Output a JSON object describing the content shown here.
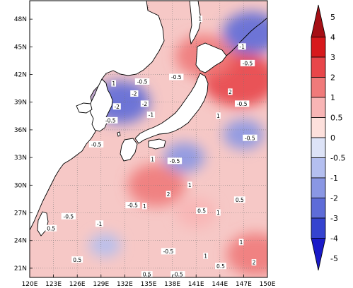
{
  "map": {
    "projection": "lat-lon",
    "extent": {
      "lon_range": [
        120,
        150
      ],
      "lat_range": [
        20,
        50
      ]
    },
    "x_ticks": [
      {
        "value": 120,
        "label": "120E"
      },
      {
        "value": 123,
        "label": "123E"
      },
      {
        "value": 126,
        "label": "126E"
      },
      {
        "value": 129,
        "label": "129E"
      },
      {
        "value": 132,
        "label": "132E"
      },
      {
        "value": 135,
        "label": "135E"
      },
      {
        "value": 138,
        "label": "138E"
      },
      {
        "value": 141,
        "label": "141E"
      },
      {
        "value": 144,
        "label": "144E"
      },
      {
        "value": 147,
        "label": "147E"
      },
      {
        "value": 150,
        "label": "150E"
      }
    ],
    "y_ticks": [
      {
        "value": 21,
        "label": "21N"
      },
      {
        "value": 24,
        "label": "24N"
      },
      {
        "value": 27,
        "label": "27N"
      },
      {
        "value": 30,
        "label": "30N"
      },
      {
        "value": 33,
        "label": "33N"
      },
      {
        "value": 36,
        "label": "36N"
      },
      {
        "value": 39,
        "label": "39N"
      },
      {
        "value": 42,
        "label": "42N"
      },
      {
        "value": 45,
        "label": "45N"
      },
      {
        "value": 48,
        "label": "48N"
      }
    ],
    "land_color": "#ffffff",
    "coastline_color": "#000000",
    "gridlines": "dotted",
    "field": {
      "type": "filled-contour",
      "anomaly_centers": [
        {
          "lon": 146.5,
          "lat": 41.5,
          "value": 3
        },
        {
          "lon": 148.5,
          "lat": 22.5,
          "value": 2
        },
        {
          "lon": 136.0,
          "lat": 30.0,
          "value": 2
        },
        {
          "lon": 142.0,
          "lat": 44.0,
          "value": 2
        },
        {
          "lon": 131.5,
          "lat": 39.0,
          "value": -2
        },
        {
          "lon": 148.0,
          "lat": 46.5,
          "value": -2
        },
        {
          "lon": 139.5,
          "lat": 33.0,
          "value": -1
        },
        {
          "lon": 147.0,
          "lat": 35.5,
          "value": -1
        },
        {
          "lon": 129.5,
          "lat": 23.5,
          "value": -0.5
        },
        {
          "lon": 141.0,
          "lat": 27.0,
          "value": 1
        }
      ],
      "contour_labels": [
        {
          "lon": 146.8,
          "lat": 45.0,
          "text": "-1"
        },
        {
          "lon": 147.5,
          "lat": 43.2,
          "text": "-0.5"
        },
        {
          "lon": 141.5,
          "lat": 48.0,
          "text": "1"
        },
        {
          "lon": 130.6,
          "lat": 41.0,
          "text": "1"
        },
        {
          "lon": 134.2,
          "lat": 41.2,
          "text": "-0.5"
        },
        {
          "lon": 138.5,
          "lat": 41.7,
          "text": "-0.5"
        },
        {
          "lon": 133.2,
          "lat": 39.9,
          "text": "-2"
        },
        {
          "lon": 131.0,
          "lat": 38.5,
          "text": "-2"
        },
        {
          "lon": 134.5,
          "lat": 38.8,
          "text": "-2"
        },
        {
          "lon": 135.3,
          "lat": 37.6,
          "text": "-1"
        },
        {
          "lon": 130.2,
          "lat": 37.0,
          "text": "-0.5"
        },
        {
          "lon": 128.4,
          "lat": 34.4,
          "text": "-0.5"
        },
        {
          "lon": 146.8,
          "lat": 38.8,
          "text": "-0.5"
        },
        {
          "lon": 147.8,
          "lat": 35.1,
          "text": "-0.5"
        },
        {
          "lon": 145.3,
          "lat": 40.1,
          "text": "2"
        },
        {
          "lon": 143.8,
          "lat": 37.5,
          "text": "1"
        },
        {
          "lon": 138.3,
          "lat": 32.6,
          "text": "-0.5"
        },
        {
          "lon": 135.5,
          "lat": 32.8,
          "text": "1"
        },
        {
          "lon": 133.0,
          "lat": 27.8,
          "text": "-0.5"
        },
        {
          "lon": 128.8,
          "lat": 25.8,
          "text": "-1"
        },
        {
          "lon": 134.5,
          "lat": 27.7,
          "text": "1"
        },
        {
          "lon": 137.5,
          "lat": 29.0,
          "text": "2"
        },
        {
          "lon": 140.2,
          "lat": 30.0,
          "text": "1"
        },
        {
          "lon": 141.7,
          "lat": 27.2,
          "text": "0.5"
        },
        {
          "lon": 146.5,
          "lat": 28.4,
          "text": "0.5"
        },
        {
          "lon": 143.8,
          "lat": 27.0,
          "text": "1"
        },
        {
          "lon": 146.7,
          "lat": 23.8,
          "text": "1"
        },
        {
          "lon": 148.3,
          "lat": 21.6,
          "text": "2"
        },
        {
          "lon": 124.9,
          "lat": 26.6,
          "text": "-0.5"
        },
        {
          "lon": 122.7,
          "lat": 25.3,
          "text": "0.5"
        },
        {
          "lon": 126.0,
          "lat": 21.9,
          "text": "0.5"
        },
        {
          "lon": 134.8,
          "lat": 20.3,
          "text": "0.5"
        },
        {
          "lon": 144.1,
          "lat": 21.2,
          "text": "0.5"
        },
        {
          "lon": 137.5,
          "lat": 22.8,
          "text": "-0.5"
        },
        {
          "lon": 142.2,
          "lat": 22.3,
          "text": "1"
        },
        {
          "lon": 138.7,
          "lat": 20.3,
          "text": "-0.5"
        }
      ]
    }
  },
  "colorbar": {
    "levels": [
      5,
      4,
      3,
      2,
      1,
      0.5,
      0,
      -0.5,
      -1,
      -2,
      -3,
      -4,
      -5
    ],
    "labels": [
      "5",
      "4",
      "3",
      "2",
      "1",
      "0.5",
      "0",
      "-0.5",
      "-1",
      "-2",
      "-3",
      "-4",
      "-5"
    ],
    "colors": [
      "#a50f15",
      "#d7191c",
      "#e8464a",
      "#f07a7a",
      "#f8b5b5",
      "#fde0dc",
      "#dde3f7",
      "#b4bff0",
      "#8a97e4",
      "#5e6cd8",
      "#3543cf",
      "#1a1ac8"
    ],
    "extend": "both"
  }
}
